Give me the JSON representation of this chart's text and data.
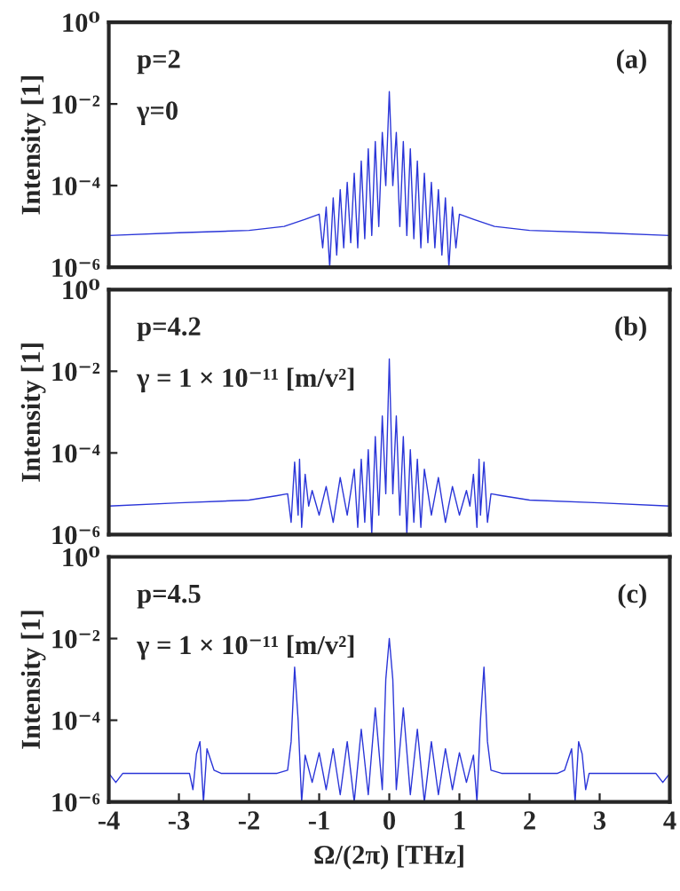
{
  "chart_data": [
    {
      "type": "line",
      "ylabel": "Intensity [1]",
      "log": "y",
      "xlim": [
        -4,
        4
      ],
      "ylim": [
        1e-06,
        1
      ],
      "tick_labels": "y",
      "grid": false,
      "legend": false,
      "yticks": [
        {
          "value": 1,
          "label": "10⁰"
        },
        {
          "value": 0.01,
          "label": "10⁻²"
        },
        {
          "value": 0.0001,
          "label": "10⁻⁴"
        },
        {
          "value": 1e-06,
          "label": "10⁻⁶"
        }
      ],
      "annotations": [
        "p=2",
        "γ=0",
        "(a)"
      ],
      "series": [
        {
          "color": "#2a35d8",
          "x": [
            -4,
            -3,
            -2,
            -1.5,
            -1.2,
            -1.0,
            -0.95,
            -0.9,
            -0.85,
            -0.8,
            -0.75,
            -0.7,
            -0.65,
            -0.6,
            -0.55,
            -0.5,
            -0.45,
            -0.4,
            -0.35,
            -0.3,
            -0.25,
            -0.2,
            -0.15,
            -0.1,
            -0.05,
            0,
            0.05,
            0.1,
            0.15,
            0.2,
            0.25,
            0.3,
            0.35,
            0.4,
            0.45,
            0.5,
            0.55,
            0.6,
            0.65,
            0.7,
            0.75,
            0.8,
            0.85,
            0.9,
            0.95,
            1.0,
            1.2,
            1.5,
            2,
            3,
            4
          ],
          "values": [
            6e-06,
            7e-06,
            8e-06,
            1e-05,
            1.5e-05,
            2e-05,
            3e-06,
            3e-05,
            1e-06,
            5e-05,
            2e-06,
            8e-05,
            3e-06,
            0.00012,
            4e-06,
            0.0002,
            3e-06,
            0.0004,
            5e-06,
            0.0008,
            6e-06,
            0.0012,
            1e-05,
            0.002,
            0.0001,
            0.02,
            0.0001,
            0.002,
            1e-05,
            0.0012,
            6e-06,
            0.0008,
            5e-06,
            0.0004,
            3e-06,
            0.0002,
            4e-06,
            0.00012,
            3e-06,
            8e-05,
            2e-06,
            5e-05,
            1e-06,
            3e-05,
            3e-06,
            2e-05,
            1.5e-05,
            1e-05,
            8e-06,
            7e-06,
            6e-06
          ]
        }
      ]
    },
    {
      "type": "line",
      "ylabel": "Intensity [1]",
      "log": "y",
      "xlim": [
        -4,
        4
      ],
      "ylim": [
        1e-06,
        1
      ],
      "tick_labels": "y",
      "grid": false,
      "legend": false,
      "yticks": [
        {
          "value": 1,
          "label": "10⁰"
        },
        {
          "value": 0.01,
          "label": "10⁻²"
        },
        {
          "value": 0.0001,
          "label": "10⁻⁴"
        },
        {
          "value": 1e-06,
          "label": "10⁻⁶"
        }
      ],
      "annotations": [
        "p=4.2",
        "γ = 1 × 10⁻¹¹ [m/v²]",
        "(b)"
      ],
      "series": [
        {
          "color": "#2a35d8",
          "x": [
            -4,
            -3,
            -2,
            -1.6,
            -1.45,
            -1.4,
            -1.35,
            -1.3,
            -1.28,
            -1.25,
            -1.2,
            -1.15,
            -1.1,
            -1.0,
            -0.9,
            -0.8,
            -0.7,
            -0.6,
            -0.5,
            -0.45,
            -0.4,
            -0.35,
            -0.3,
            -0.25,
            -0.2,
            -0.15,
            -0.1,
            -0.05,
            0,
            0.05,
            0.1,
            0.15,
            0.2,
            0.25,
            0.3,
            0.35,
            0.4,
            0.45,
            0.5,
            0.6,
            0.7,
            0.8,
            0.9,
            1.0,
            1.1,
            1.15,
            1.2,
            1.25,
            1.28,
            1.3,
            1.35,
            1.4,
            1.45,
            1.6,
            2,
            3,
            4
          ],
          "values": [
            5e-06,
            6e-06,
            7e-06,
            9e-06,
            1e-05,
            2e-06,
            6e-05,
            3e-06,
            7e-05,
            1.5e-06,
            3e-05,
            5e-06,
            1.2e-05,
            3e-06,
            1.5e-05,
            2e-06,
            2.5e-05,
            3e-06,
            4e-05,
            1.5e-06,
            7e-05,
            2e-06,
            0.00012,
            1e-06,
            0.00025,
            3e-06,
            0.0008,
            1e-05,
            0.02,
            1e-05,
            0.0008,
            3e-06,
            0.00025,
            1e-06,
            0.00012,
            2e-06,
            7e-05,
            1.5e-06,
            4e-05,
            3e-06,
            2.5e-05,
            2e-06,
            1.5e-05,
            3e-06,
            1.2e-05,
            5e-06,
            3e-05,
            1.5e-06,
            7e-05,
            3e-06,
            6e-05,
            2e-06,
            1e-05,
            9e-06,
            7e-06,
            6e-06,
            5e-06
          ]
        }
      ]
    },
    {
      "type": "line",
      "xlabel": "Ω/(2π) [THz]",
      "ylabel": "Intensity [1]",
      "log": "y",
      "xlim": [
        -4,
        4
      ],
      "ylim": [
        1e-06,
        1
      ],
      "grid": false,
      "legend": false,
      "xticks": [
        -4,
        -3,
        -2,
        -1,
        0,
        1,
        2,
        3,
        4
      ],
      "yticks": [
        {
          "value": 1,
          "label": "10⁰"
        },
        {
          "value": 0.01,
          "label": "10⁻²"
        },
        {
          "value": 0.0001,
          "label": "10⁻⁴"
        },
        {
          "value": 1e-06,
          "label": "10⁻⁶"
        }
      ],
      "annotations": [
        "p=4.5",
        "γ = 1 × 10⁻¹¹ [m/v²]",
        "(c)"
      ],
      "series": [
        {
          "color": "#2a35d8",
          "x": [
            -4,
            -3.9,
            -3.8,
            -3,
            -2.85,
            -2.8,
            -2.75,
            -2.7,
            -2.65,
            -2.6,
            -2.5,
            -2.4,
            -1.6,
            -1.45,
            -1.4,
            -1.35,
            -1.3,
            -1.25,
            -1.2,
            -1.1,
            -1.0,
            -0.9,
            -0.8,
            -0.7,
            -0.6,
            -0.5,
            -0.4,
            -0.3,
            -0.2,
            -0.1,
            -0.05,
            0,
            0.05,
            0.1,
            0.2,
            0.3,
            0.4,
            0.5,
            0.6,
            0.7,
            0.8,
            0.9,
            1.0,
            1.1,
            1.2,
            1.25,
            1.3,
            1.35,
            1.4,
            1.45,
            1.6,
            2.4,
            2.5,
            2.6,
            2.65,
            2.7,
            2.75,
            2.8,
            2.85,
            3,
            3.8,
            3.9,
            4
          ],
          "values": [
            5e-06,
            3e-06,
            5e-06,
            5e-06,
            5e-06,
            2e-06,
            1.5e-05,
            3e-05,
            1e-06,
            2e-05,
            6e-06,
            5e-06,
            5e-06,
            6e-06,
            3e-05,
            0.002,
            0.0001,
            1e-06,
            1.4e-05,
            3e-06,
            1.6e-05,
            2e-06,
            2e-05,
            1.5e-06,
            3e-05,
            1e-06,
            6e-05,
            1.5e-06,
            0.0002,
            2e-06,
            0.001,
            0.01,
            0.001,
            2e-06,
            0.0002,
            1.5e-06,
            6e-05,
            1e-06,
            3e-05,
            1.5e-06,
            2e-05,
            2e-06,
            1.6e-05,
            3e-06,
            1.4e-05,
            1e-06,
            0.0001,
            0.002,
            3e-05,
            6e-06,
            5e-06,
            5e-06,
            6e-06,
            2e-05,
            1e-06,
            3e-05,
            1.5e-05,
            2e-06,
            5e-06,
            5e-06,
            5e-06,
            3e-06,
            5e-06
          ]
        }
      ]
    }
  ]
}
